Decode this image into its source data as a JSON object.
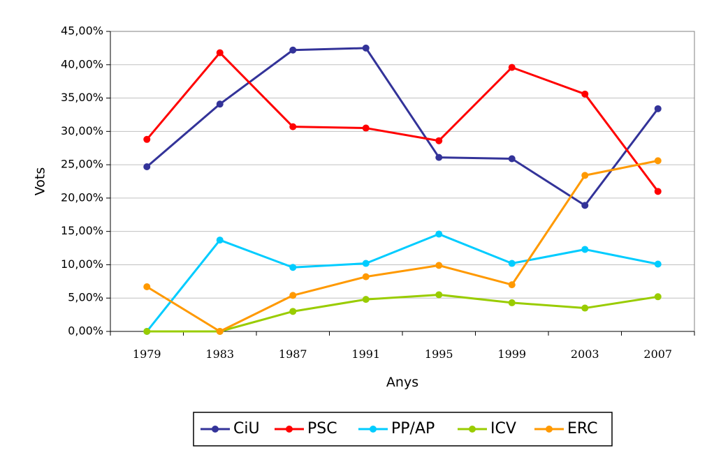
{
  "chart_data": {
    "type": "line",
    "xlabel": "Anys",
    "ylabel": "Vots",
    "ylim": [
      0,
      45
    ],
    "y_ticks": [
      "0,00%",
      "5,00%",
      "10,00%",
      "15,00%",
      "20,00%",
      "25,00%",
      "30,00%",
      "35,00%",
      "40,00%",
      "45,00%"
    ],
    "categories": [
      "1979",
      "1983",
      "1987",
      "1991",
      "1995",
      "1999",
      "2003",
      "2007"
    ],
    "grid": true,
    "legend_position": "bottom",
    "series": [
      {
        "name": "CiU",
        "color": "#333399",
        "values": [
          24.7,
          34.1,
          42.2,
          42.5,
          26.1,
          25.9,
          18.9,
          33.4
        ]
      },
      {
        "name": "PSC",
        "color": "#ff0000",
        "values": [
          28.8,
          41.8,
          30.7,
          30.5,
          28.6,
          39.6,
          35.6,
          21.0
        ]
      },
      {
        "name": "PP/AP",
        "color": "#00ccff",
        "values": [
          0.0,
          13.7,
          9.6,
          10.2,
          14.6,
          10.2,
          12.3,
          10.1
        ]
      },
      {
        "name": "ICV",
        "color": "#99cc00",
        "values": [
          0.0,
          0.0,
          3.0,
          4.8,
          5.5,
          4.3,
          3.5,
          5.2
        ]
      },
      {
        "name": "ERC",
        "color": "#ff9900",
        "values": [
          6.7,
          0.0,
          5.4,
          8.2,
          9.9,
          7.0,
          23.4,
          25.6
        ]
      }
    ]
  }
}
